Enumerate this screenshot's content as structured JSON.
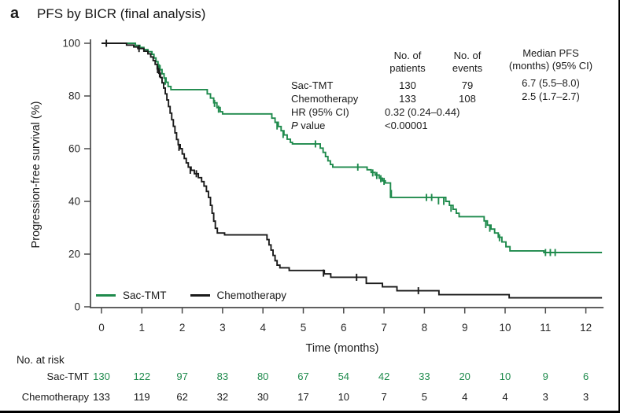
{
  "panel_label": "a",
  "title": "PFS by BICR (final analysis)",
  "colors": {
    "sac_tmt_green": "#1e8a4c",
    "chemo_black": "#1a1a1a",
    "axis_gray": "#4a4a4a",
    "text": "#1a1a1a"
  },
  "stats_table": {
    "col_headers": [
      [
        "No. of",
        "patients"
      ],
      [
        "No. of",
        "events"
      ],
      [
        "Median PFS",
        "(months) (95% CI)"
      ]
    ],
    "rows": [
      {
        "label": "Sac-TMT",
        "patients": "130",
        "events": "79",
        "median_pfs": "6.7 (5.5–8.0)"
      },
      {
        "label": "Chemotherapy",
        "patients": "133",
        "events": "108",
        "median_pfs": "2.5 (1.7–2.7)"
      }
    ],
    "hr_label": "HR (95% CI)",
    "hr_value": "0.32 (0.24–0.44)",
    "p_label_italic": "P",
    "p_label_rest": " value",
    "p_value": "<0.00001"
  },
  "legend": [
    {
      "label": "Sac-TMT",
      "color": "#1e8a4c"
    },
    {
      "label": "Chemotherapy",
      "color": "#1a1a1a"
    }
  ],
  "axes": {
    "ylabel": "Progression-free survival (%)",
    "xlabel": "Time (months)"
  },
  "risk_table": {
    "title": "No. at risk",
    "rows": [
      {
        "label": "Sac-TMT",
        "color": "#1e8a4c",
        "values": [
          "130",
          "122",
          "97",
          "83",
          "80",
          "67",
          "54",
          "42",
          "33",
          "20",
          "10",
          "9",
          "6"
        ]
      },
      {
        "label": "Chemotherapy",
        "color": "#1a1a1a",
        "values": [
          "133",
          "119",
          "62",
          "32",
          "30",
          "17",
          "10",
          "7",
          "5",
          "4",
          "4",
          "3",
          "3"
        ]
      }
    ]
  },
  "chart_data": {
    "type": "line",
    "subtype": "kaplan-meier-step",
    "title": "PFS by BICR (final analysis)",
    "xlabel": "Time (months)",
    "ylabel": "Progression-free survival (%)",
    "xlim": [
      0,
      12.4
    ],
    "ylim": [
      0,
      100
    ],
    "xticks": [
      0,
      1,
      2,
      3,
      4,
      5,
      6,
      7,
      8,
      9,
      10,
      11,
      12
    ],
    "yticks": [
      0,
      20,
      40,
      60,
      80,
      100
    ],
    "grid": false,
    "legend_position": "inside bottom-left",
    "series": [
      {
        "name": "Sac-TMT",
        "color": "#1e8a4c",
        "median_pfs_months": "6.7 (5.5–8.0)",
        "n_patients": 130,
        "n_events": 79,
        "steps": [
          [
            0,
            100
          ],
          [
            0.78,
            100
          ],
          [
            0.84,
            99.2
          ],
          [
            0.95,
            98.4
          ],
          [
            1.05,
            97.6
          ],
          [
            1.15,
            96.8
          ],
          [
            1.25,
            95.8
          ],
          [
            1.3,
            94.4
          ],
          [
            1.35,
            93
          ],
          [
            1.4,
            91.5
          ],
          [
            1.45,
            90
          ],
          [
            1.5,
            88.4
          ],
          [
            1.55,
            86.8
          ],
          [
            1.6,
            85.2
          ],
          [
            1.65,
            83.6
          ],
          [
            1.72,
            82.4
          ],
          [
            2.55,
            82.4
          ],
          [
            2.62,
            80.8
          ],
          [
            2.7,
            79.2
          ],
          [
            2.78,
            77.4
          ],
          [
            2.86,
            75.6
          ],
          [
            2.94,
            74
          ],
          [
            3.0,
            73.2
          ],
          [
            4.15,
            73.2
          ],
          [
            4.22,
            71.6
          ],
          [
            4.3,
            70
          ],
          [
            4.38,
            68.4
          ],
          [
            4.45,
            66.8
          ],
          [
            4.52,
            65.2
          ],
          [
            4.6,
            63.6
          ],
          [
            4.68,
            62.4
          ],
          [
            4.73,
            61.8
          ],
          [
            5.35,
            61.8
          ],
          [
            5.42,
            60.2
          ],
          [
            5.49,
            58.6
          ],
          [
            5.55,
            57
          ],
          [
            5.61,
            55.4
          ],
          [
            5.67,
            54
          ],
          [
            5.73,
            53
          ],
          [
            6.5,
            53
          ],
          [
            6.58,
            52
          ],
          [
            6.68,
            51
          ],
          [
            6.78,
            50
          ],
          [
            6.88,
            48.8
          ],
          [
            6.96,
            47.8
          ],
          [
            7.03,
            47
          ],
          [
            7.16,
            41.5
          ],
          [
            8.45,
            41.5
          ],
          [
            8.53,
            40
          ],
          [
            8.62,
            38.5
          ],
          [
            8.71,
            37
          ],
          [
            8.79,
            35.5
          ],
          [
            8.86,
            34.2
          ],
          [
            9.4,
            34.2
          ],
          [
            9.48,
            32.6
          ],
          [
            9.56,
            31
          ],
          [
            9.65,
            29.5
          ],
          [
            9.74,
            28
          ],
          [
            9.83,
            26.4
          ],
          [
            9.92,
            24.6
          ],
          [
            10.02,
            22.8
          ],
          [
            10.12,
            21.2
          ],
          [
            10.9,
            21.2
          ],
          [
            10.96,
            20.6
          ],
          [
            12.4,
            20.6
          ]
        ],
        "censors": [
          [
            1.42,
            90.8
          ],
          [
            1.58,
            85.6
          ],
          [
            2.8,
            77.2
          ],
          [
            2.9,
            75
          ],
          [
            4.35,
            68.6
          ],
          [
            4.5,
            65.4
          ],
          [
            5.3,
            61.8
          ],
          [
            6.35,
            53
          ],
          [
            6.72,
            50.8
          ],
          [
            6.82,
            49.8
          ],
          [
            6.92,
            48.6
          ],
          [
            7.0,
            47.6
          ],
          [
            7.18,
            43
          ],
          [
            8.05,
            41.5
          ],
          [
            8.18,
            41.5
          ],
          [
            8.35,
            40.2
          ],
          [
            8.48,
            40
          ],
          [
            8.66,
            37.4
          ],
          [
            9.52,
            31.2
          ],
          [
            9.62,
            29.8
          ],
          [
            9.86,
            26.2
          ],
          [
            11.0,
            20.6
          ],
          [
            11.12,
            20.6
          ],
          [
            11.24,
            20.6
          ]
        ]
      },
      {
        "name": "Chemotherapy",
        "color": "#1a1a1a",
        "median_pfs_months": "2.5 (1.7–2.7)",
        "n_patients": 133,
        "n_events": 108,
        "steps": [
          [
            0,
            100
          ],
          [
            0.55,
            100
          ],
          [
            0.62,
            99.3
          ],
          [
            0.8,
            98.6
          ],
          [
            0.9,
            98
          ],
          [
            1.05,
            97
          ],
          [
            1.15,
            96
          ],
          [
            1.22,
            94.8
          ],
          [
            1.28,
            93.4
          ],
          [
            1.33,
            92
          ],
          [
            1.38,
            90.3
          ],
          [
            1.42,
            88.6
          ],
          [
            1.46,
            87
          ],
          [
            1.5,
            85
          ],
          [
            1.54,
            83
          ],
          [
            1.58,
            80.8
          ],
          [
            1.62,
            78.5
          ],
          [
            1.66,
            76
          ],
          [
            1.7,
            73.5
          ],
          [
            1.74,
            71
          ],
          [
            1.78,
            68.5
          ],
          [
            1.82,
            66
          ],
          [
            1.86,
            63.5
          ],
          [
            1.9,
            61.5
          ],
          [
            1.95,
            60
          ],
          [
            2.0,
            58
          ],
          [
            2.05,
            56.3
          ],
          [
            2.1,
            54.6
          ],
          [
            2.15,
            53
          ],
          [
            2.22,
            51.8
          ],
          [
            2.3,
            50.5
          ],
          [
            2.4,
            49
          ],
          [
            2.48,
            47.5
          ],
          [
            2.54,
            45.8
          ],
          [
            2.6,
            43.8
          ],
          [
            2.65,
            41.5
          ],
          [
            2.7,
            38.5
          ],
          [
            2.74,
            35.5
          ],
          [
            2.78,
            32.5
          ],
          [
            2.82,
            29.8
          ],
          [
            2.87,
            28
          ],
          [
            3.05,
            27.3
          ],
          [
            4.05,
            27.3
          ],
          [
            4.1,
            25.5
          ],
          [
            4.15,
            23.5
          ],
          [
            4.2,
            21.5
          ],
          [
            4.25,
            19.5
          ],
          [
            4.3,
            17.5
          ],
          [
            4.35,
            15.8
          ],
          [
            4.42,
            14.8
          ],
          [
            4.65,
            13.8
          ],
          [
            5.45,
            13.8
          ],
          [
            5.52,
            12.5
          ],
          [
            5.68,
            11.2
          ],
          [
            6.5,
            11.2
          ],
          [
            6.56,
            8.9
          ],
          [
            6.9,
            8.9
          ],
          [
            6.96,
            7.6
          ],
          [
            7.25,
            7.6
          ],
          [
            7.32,
            6.1
          ],
          [
            8.3,
            6.1
          ],
          [
            8.36,
            4.6
          ],
          [
            10.05,
            4.6
          ],
          [
            10.1,
            3.4
          ],
          [
            12.4,
            3.4
          ]
        ],
        "censors": [
          [
            0.12,
            100
          ],
          [
            0.93,
            98
          ],
          [
            1.39,
            90
          ],
          [
            1.44,
            88.4
          ],
          [
            1.92,
            60.5
          ],
          [
            2.2,
            51.8
          ],
          [
            2.35,
            50.5
          ],
          [
            5.5,
            12.8
          ],
          [
            6.32,
            11.2
          ],
          [
            7.85,
            6.1
          ]
        ]
      }
    ]
  }
}
